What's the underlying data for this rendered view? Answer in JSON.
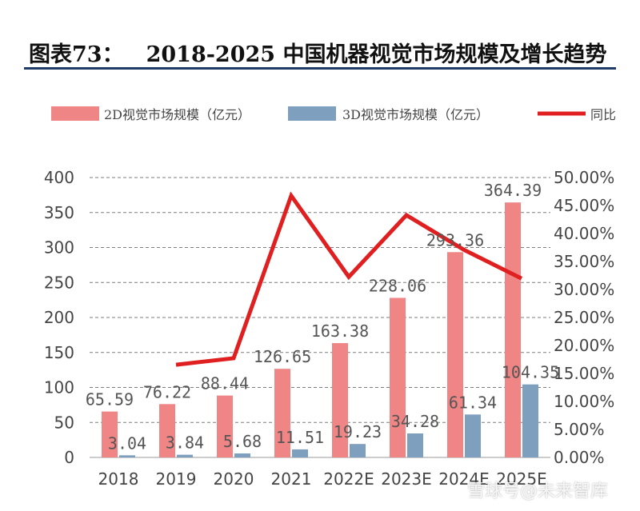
{
  "figure": {
    "label": "图表73：",
    "title": "2018-2025 中国机器视觉市场规模及增长趋势"
  },
  "watermark": "雪球号@未来智库",
  "chart_data": {
    "type": "bar",
    "categories": [
      "2018",
      "2019",
      "2020",
      "2021",
      "2022E",
      "2023E",
      "2024E",
      "2025E"
    ],
    "series": [
      {
        "name": "2D视觉市场规模（亿元）",
        "kind": "bar",
        "color": "#f08585",
        "values": [
          65.59,
          76.22,
          88.44,
          126.65,
          163.38,
          228.06,
          293.36,
          364.39
        ]
      },
      {
        "name": "3D视觉市场规模（亿元）",
        "kind": "bar",
        "color": "#7f9fbf",
        "values": [
          3.04,
          3.84,
          5.68,
          11.51,
          19.23,
          34.28,
          61.34,
          104.35
        ]
      },
      {
        "name": "同比",
        "kind": "line",
        "axis": "right",
        "color": "#e02020",
        "values": [
          null,
          0.1656,
          0.1772,
          0.4675,
          0.3225,
          0.4328,
          0.3709,
          0.3196
        ]
      }
    ],
    "bar_labels_2d": [
      "65.59",
      "76.22",
      "88.44",
      "126.65",
      "163.38",
      "228.06",
      "293.36",
      "364.39"
    ],
    "bar_labels_3d": [
      "3.04",
      "3.84",
      "5.68",
      "11.51",
      "19.23",
      "34.28",
      "61.34",
      "104.35"
    ],
    "ylim_left": [
      0,
      400
    ],
    "yticks_left": [
      "0",
      "50",
      "100",
      "150",
      "200",
      "250",
      "300",
      "350",
      "400"
    ],
    "ylim_right": [
      0,
      0.5
    ],
    "yticks_right": [
      "0.00%",
      "5.00%",
      "10.00%",
      "15.00%",
      "20.00%",
      "25.00%",
      "30.00%",
      "35.00%",
      "40.00%",
      "45.00%",
      "50.00%"
    ],
    "legend_position": "top",
    "grid": true
  }
}
